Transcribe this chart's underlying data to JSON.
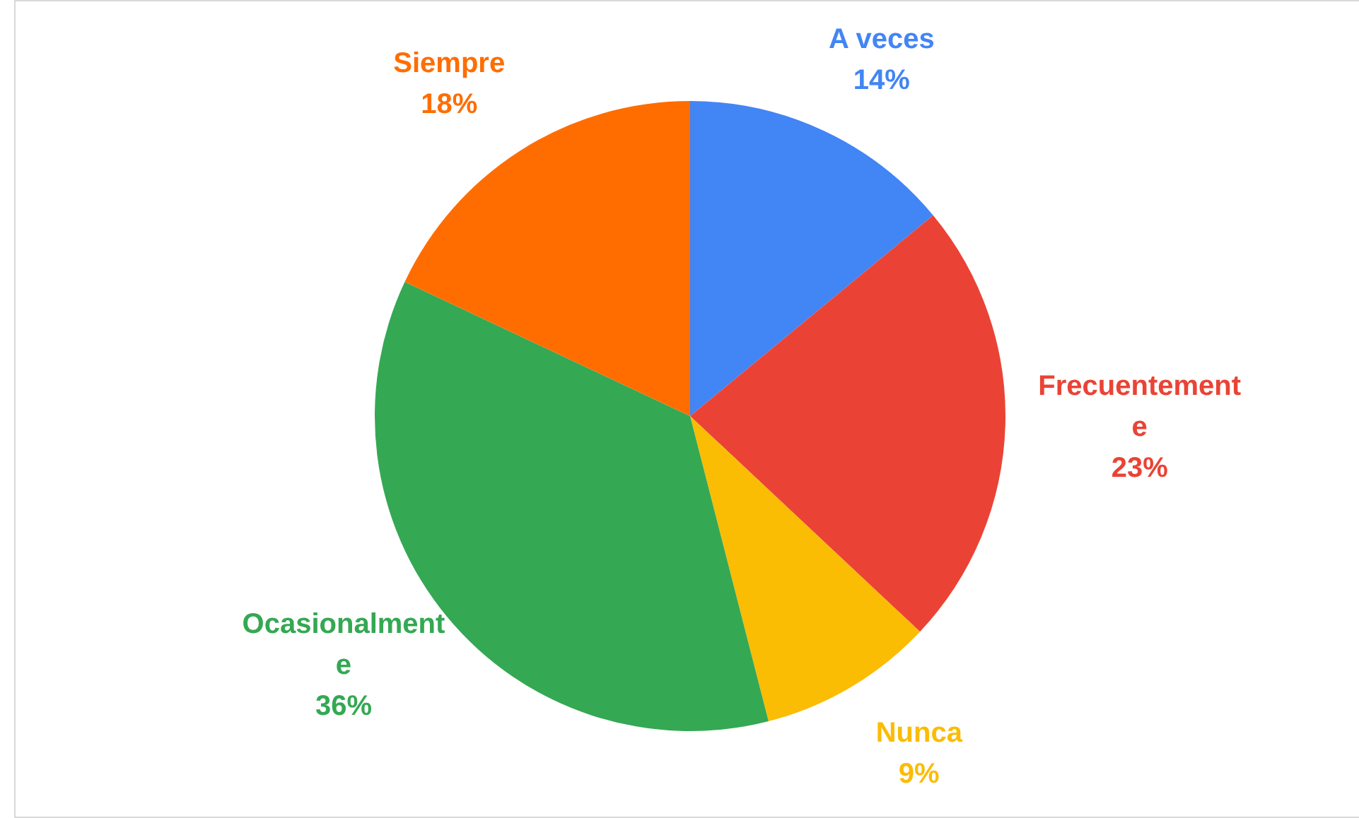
{
  "chart_data": {
    "type": "pie",
    "categories": [
      "A veces",
      "Frecuentemente",
      "Nunca",
      "Ocasionalmente",
      "Siempre"
    ],
    "values": [
      14,
      23,
      9,
      36,
      18
    ],
    "colors": [
      "#4285f4",
      "#ea4335",
      "#fbbc04",
      "#34a853",
      "#ff6d01"
    ],
    "legend": false,
    "value_labels": [
      "14%",
      "23%",
      "9%",
      "36%",
      "18%"
    ]
  }
}
